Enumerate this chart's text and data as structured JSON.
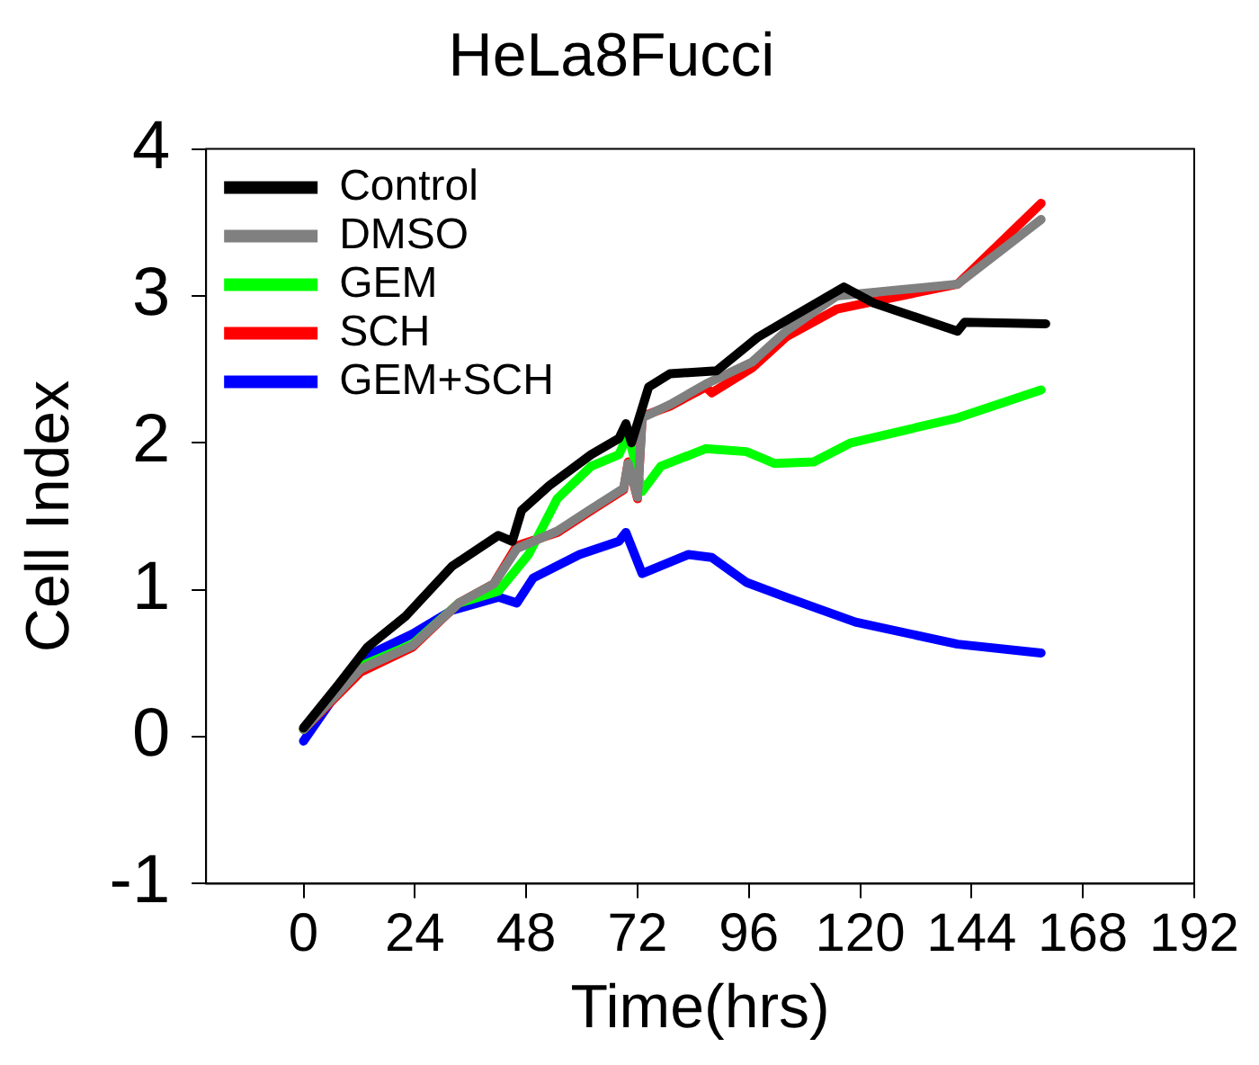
{
  "chart_data": {
    "type": "line",
    "title": "HeLa8Fucci",
    "xlabel": "Time(hrs)",
    "ylabel": "Cell Index",
    "xlim": [
      -21,
      192
    ],
    "xticks": [
      0,
      24,
      48,
      72,
      96,
      120,
      144,
      168,
      192
    ],
    "ylim": [
      -1,
      4
    ],
    "yticks": [
      -1,
      0,
      1,
      2,
      3,
      4
    ],
    "grid": false,
    "legend": "top left",
    "marker": "none",
    "line_style": "solid",
    "series": [
      {
        "name": "Control",
        "color": "#000000",
        "x": [
          0,
          7.4,
          13.8,
          22,
          32,
          42,
          45,
          47,
          53,
          62,
          68,
          69.5,
          70.7,
          74.4,
          79,
          89,
          98,
          105,
          116.5,
          123,
          141,
          142.5,
          160
        ],
        "values": [
          0.06,
          0.35,
          0.61,
          0.82,
          1.16,
          1.37,
          1.33,
          1.54,
          1.71,
          1.92,
          2.03,
          2.13,
          2,
          2.38,
          2.47,
          2.49,
          2.72,
          2.85,
          3.06,
          2.95,
          2.76,
          2.82,
          2.81
        ]
      },
      {
        "name": "DMSO",
        "color": "#808080",
        "x": [
          0,
          12.3,
          23.5,
          33.5,
          41,
          46,
          54.7,
          62,
          69,
          70,
          72,
          73,
          79,
          86.7,
          96.7,
          104,
          115,
          141,
          159
        ],
        "values": [
          0.05,
          0.46,
          0.62,
          0.91,
          1.04,
          1.28,
          1.4,
          1.55,
          1.69,
          1.86,
          1.63,
          2.17,
          2.26,
          2.4,
          2.55,
          2.76,
          3,
          3.08,
          3.52
        ]
      },
      {
        "name": "GEM",
        "color": "#00ff00",
        "x": [
          0,
          12.3,
          23.5,
          33.5,
          42,
          48.5,
          54.7,
          62,
          68,
          70,
          73,
          77,
          86.7,
          95.5,
          101.5,
          110,
          118,
          141,
          159
        ],
        "values": [
          0.05,
          0.48,
          0.63,
          0.91,
          0.99,
          1.24,
          1.62,
          1.84,
          1.92,
          2.06,
          1.67,
          1.84,
          1.96,
          1.94,
          1.86,
          1.87,
          2,
          2.17,
          2.36
        ]
      },
      {
        "name": "SCH",
        "color": "#ff0000",
        "x": [
          0,
          12.3,
          23.5,
          33.5,
          41,
          46,
          54.7,
          62,
          69,
          70,
          72,
          73,
          79,
          86.7,
          88,
          96.7,
          104,
          115,
          141,
          159
        ],
        "values": [
          0.05,
          0.44,
          0.61,
          0.91,
          1.04,
          1.3,
          1.39,
          1.54,
          1.68,
          1.87,
          1.62,
          2.18,
          2.25,
          2.38,
          2.34,
          2.51,
          2.72,
          2.91,
          3.08,
          3.63
        ]
      },
      {
        "name": "GEM+SCH",
        "color": "#0000ff",
        "x": [
          0,
          12.3,
          23.5,
          32,
          42,
          46,
          49.5,
          59.5,
          68,
          69.5,
          73,
          83,
          88,
          95.5,
          104,
          119,
          141,
          159
        ],
        "values": [
          -0.03,
          0.53,
          0.7,
          0.86,
          0.95,
          0.91,
          1.08,
          1.24,
          1.33,
          1.39,
          1.11,
          1.24,
          1.22,
          1.05,
          0.95,
          0.78,
          0.63,
          0.57
        ]
      }
    ]
  }
}
